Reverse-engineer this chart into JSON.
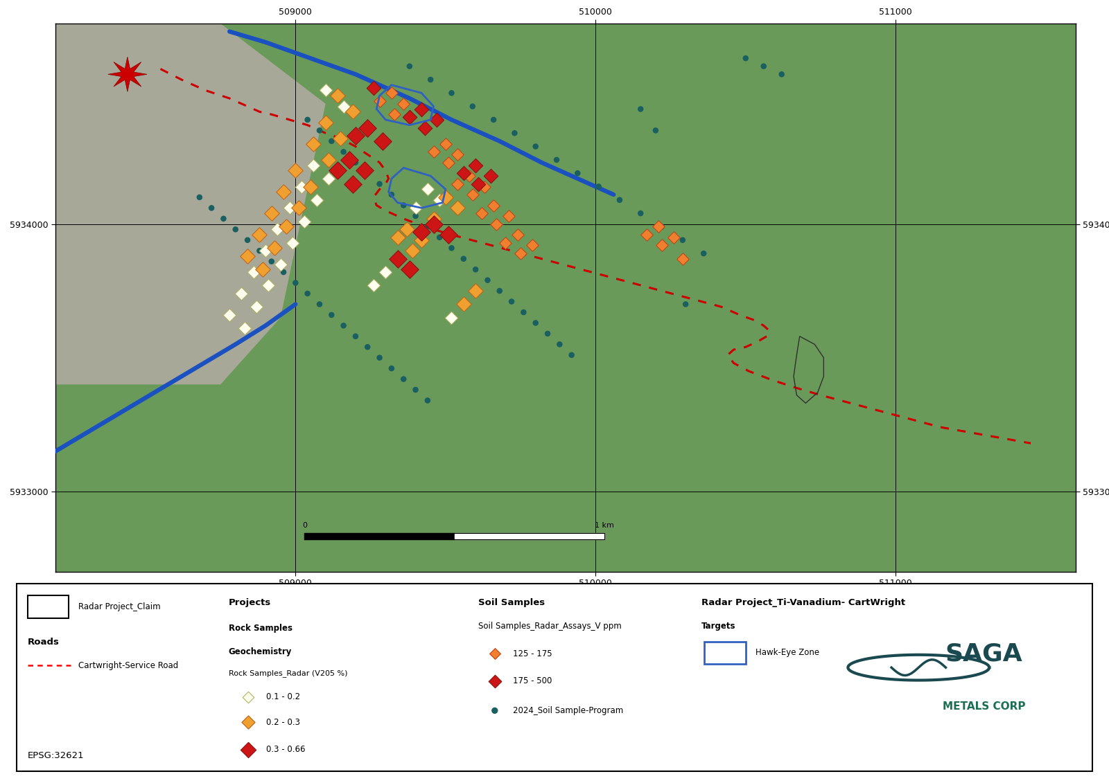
{
  "xlim": [
    508200,
    511600
  ],
  "ylim": [
    5932700,
    5934750
  ],
  "xticks": [
    509000,
    510000,
    511000
  ],
  "yticks": [
    5933000,
    5934000
  ],
  "soil_dots": [
    [
      508680,
      5934100
    ],
    [
      508720,
      5934060
    ],
    [
      508760,
      5934020
    ],
    [
      508800,
      5933980
    ],
    [
      508840,
      5933940
    ],
    [
      508880,
      5933900
    ],
    [
      508920,
      5933860
    ],
    [
      508960,
      5933820
    ],
    [
      509000,
      5933780
    ],
    [
      509040,
      5933740
    ],
    [
      509080,
      5933700
    ],
    [
      509120,
      5933660
    ],
    [
      509160,
      5933620
    ],
    [
      509200,
      5933580
    ],
    [
      509240,
      5933540
    ],
    [
      509280,
      5933500
    ],
    [
      509320,
      5933460
    ],
    [
      509360,
      5933420
    ],
    [
      509400,
      5933380
    ],
    [
      509440,
      5933340
    ],
    [
      509040,
      5934390
    ],
    [
      509080,
      5934350
    ],
    [
      509120,
      5934310
    ],
    [
      509160,
      5934270
    ],
    [
      509200,
      5934230
    ],
    [
      509240,
      5934190
    ],
    [
      509280,
      5934150
    ],
    [
      509320,
      5934110
    ],
    [
      509360,
      5934070
    ],
    [
      509400,
      5934030
    ],
    [
      509440,
      5933990
    ],
    [
      509480,
      5933950
    ],
    [
      509520,
      5933910
    ],
    [
      509560,
      5933870
    ],
    [
      509600,
      5933830
    ],
    [
      509640,
      5933790
    ],
    [
      509680,
      5933750
    ],
    [
      509720,
      5933710
    ],
    [
      509760,
      5933670
    ],
    [
      509800,
      5933630
    ],
    [
      509840,
      5933590
    ],
    [
      509880,
      5933550
    ],
    [
      509920,
      5933510
    ],
    [
      509380,
      5934590
    ],
    [
      509450,
      5934540
    ],
    [
      509520,
      5934490
    ],
    [
      509590,
      5934440
    ],
    [
      509660,
      5934390
    ],
    [
      509730,
      5934340
    ],
    [
      509800,
      5934290
    ],
    [
      509870,
      5934240
    ],
    [
      509940,
      5934190
    ],
    [
      510010,
      5934140
    ],
    [
      510080,
      5934090
    ],
    [
      510150,
      5934040
    ],
    [
      510220,
      5933990
    ],
    [
      510290,
      5933940
    ],
    [
      510360,
      5933890
    ],
    [
      510500,
      5934620
    ],
    [
      510560,
      5934590
    ],
    [
      510620,
      5934560
    ],
    [
      510150,
      5934430
    ],
    [
      510200,
      5934350
    ],
    [
      510300,
      5933700
    ]
  ],
  "rock_01_02": [
    [
      509100,
      5934500
    ],
    [
      509160,
      5934440
    ],
    [
      509060,
      5934220
    ],
    [
      509110,
      5934170
    ],
    [
      509020,
      5934140
    ],
    [
      509070,
      5934090
    ],
    [
      508980,
      5934060
    ],
    [
      509030,
      5934010
    ],
    [
      508940,
      5933980
    ],
    [
      508990,
      5933930
    ],
    [
      508900,
      5933900
    ],
    [
      508950,
      5933850
    ],
    [
      508860,
      5933820
    ],
    [
      508910,
      5933770
    ],
    [
      508820,
      5933740
    ],
    [
      508870,
      5933690
    ],
    [
      508780,
      5933660
    ],
    [
      508830,
      5933610
    ],
    [
      509300,
      5933820
    ],
    [
      509260,
      5933770
    ],
    [
      509440,
      5934130
    ],
    [
      509480,
      5934090
    ],
    [
      509400,
      5934060
    ],
    [
      509560,
      5933700
    ],
    [
      509520,
      5933650
    ]
  ],
  "rock_02_03": [
    [
      509140,
      5934480
    ],
    [
      509190,
      5934420
    ],
    [
      509100,
      5934380
    ],
    [
      509150,
      5934320
    ],
    [
      509060,
      5934300
    ],
    [
      509110,
      5934240
    ],
    [
      509000,
      5934200
    ],
    [
      509050,
      5934140
    ],
    [
      508960,
      5934120
    ],
    [
      509010,
      5934060
    ],
    [
      508920,
      5934040
    ],
    [
      508970,
      5933990
    ],
    [
      508880,
      5933960
    ],
    [
      508930,
      5933910
    ],
    [
      508840,
      5933880
    ],
    [
      508890,
      5933830
    ],
    [
      509370,
      5933980
    ],
    [
      509420,
      5933940
    ],
    [
      509340,
      5933950
    ],
    [
      509390,
      5933900
    ],
    [
      509500,
      5934100
    ],
    [
      509540,
      5934060
    ],
    [
      509460,
      5934020
    ],
    [
      509600,
      5933750
    ],
    [
      509560,
      5933700
    ]
  ],
  "rock_03_066": [
    [
      509240,
      5934360
    ],
    [
      509290,
      5934310
    ],
    [
      509200,
      5934330
    ],
    [
      509180,
      5934240
    ],
    [
      509230,
      5934200
    ],
    [
      509140,
      5934200
    ],
    [
      509190,
      5934150
    ],
    [
      509340,
      5933870
    ],
    [
      509380,
      5933830
    ],
    [
      509460,
      5934000
    ],
    [
      509510,
      5933960
    ],
    [
      509420,
      5933970
    ]
  ],
  "soil_125_175": [
    [
      509320,
      5934490
    ],
    [
      509360,
      5934450
    ],
    [
      509280,
      5934460
    ],
    [
      509330,
      5934410
    ],
    [
      509500,
      5934300
    ],
    [
      509540,
      5934260
    ],
    [
      509460,
      5934270
    ],
    [
      509510,
      5934230
    ],
    [
      509580,
      5934180
    ],
    [
      509630,
      5934140
    ],
    [
      509540,
      5934150
    ],
    [
      509590,
      5934110
    ],
    [
      509660,
      5934070
    ],
    [
      509710,
      5934030
    ],
    [
      509620,
      5934040
    ],
    [
      509670,
      5934000
    ],
    [
      509740,
      5933960
    ],
    [
      509790,
      5933920
    ],
    [
      509700,
      5933930
    ],
    [
      509750,
      5933890
    ],
    [
      510210,
      5933990
    ],
    [
      510260,
      5933950
    ],
    [
      510170,
      5933960
    ],
    [
      510220,
      5933920
    ],
    [
      510290,
      5933870
    ]
  ],
  "soil_175_500": [
    [
      509420,
      5934430
    ],
    [
      509470,
      5934390
    ],
    [
      509380,
      5934400
    ],
    [
      509430,
      5934360
    ],
    [
      509260,
      5934510
    ],
    [
      509600,
      5934220
    ],
    [
      509650,
      5934180
    ],
    [
      509560,
      5934190
    ],
    [
      509610,
      5934150
    ]
  ],
  "road_dashed_x": [
    508550,
    508620,
    508700,
    508780,
    508840,
    508880,
    508920,
    508980,
    509040,
    509100,
    509150,
    509200,
    509240,
    509280,
    509300,
    509310,
    509300,
    509280,
    509260,
    509270,
    509300,
    509360,
    509430,
    509520,
    509620,
    509720,
    509820,
    509920,
    510020,
    510120,
    510220,
    510320,
    510420,
    510480,
    510530,
    510560,
    510580,
    510570,
    510540,
    510500,
    510460,
    510440,
    510460,
    510510,
    510580,
    510660,
    510750,
    510850,
    510950,
    511050,
    511150,
    511300,
    511450
  ],
  "road_dashed_y": [
    5934580,
    5934540,
    5934500,
    5934470,
    5934440,
    5934420,
    5934410,
    5934390,
    5934370,
    5934340,
    5934320,
    5934290,
    5934260,
    5934230,
    5934200,
    5934170,
    5934150,
    5934130,
    5934100,
    5934070,
    5934050,
    5934020,
    5933990,
    5933960,
    5933930,
    5933900,
    5933870,
    5933840,
    5933810,
    5933780,
    5933750,
    5933720,
    5933690,
    5933660,
    5933640,
    5933620,
    5933600,
    5933580,
    5933560,
    5933540,
    5933530,
    5933510,
    5933480,
    5933450,
    5933420,
    5933390,
    5933360,
    5933330,
    5933300,
    5933270,
    5933240,
    5933210,
    5933180
  ],
  "blue_road_x": [
    508780,
    508900,
    509000,
    509100,
    509200,
    509300,
    509380,
    509450,
    509520,
    509600,
    509680,
    509750,
    509820,
    509900,
    509980,
    510060
  ],
  "blue_road_y": [
    5934720,
    5934680,
    5934640,
    5934600,
    5934560,
    5934510,
    5934470,
    5934430,
    5934390,
    5934350,
    5934310,
    5934270,
    5934230,
    5934190,
    5934150,
    5934110
  ],
  "blue_road2_x": [
    508200,
    508350,
    508500,
    508650,
    508800,
    508900,
    508950,
    509000
  ],
  "blue_road2_y": [
    5933150,
    5933250,
    5933350,
    5933450,
    5933550,
    5933620,
    5933660,
    5933700
  ],
  "gray_area": [
    [
      508200,
      5934750
    ],
    [
      508750,
      5934750
    ],
    [
      509100,
      5934450
    ],
    [
      508950,
      5933650
    ],
    [
      508750,
      5933400
    ],
    [
      508200,
      5933400
    ]
  ],
  "hawk_eye_zone_x": [
    509320,
    509420,
    509460,
    509450,
    509380,
    509300,
    509270,
    509280,
    509320
  ],
  "hawk_eye_zone_y": [
    5934520,
    5934490,
    5934440,
    5934390,
    5934370,
    5934390,
    5934430,
    5934480,
    5934520
  ],
  "hawk_eye_zone2_x": [
    509360,
    509450,
    509500,
    509490,
    509420,
    509340,
    509310,
    509320,
    509360
  ],
  "hawk_eye_zone2_y": [
    5934210,
    5934180,
    5934130,
    5934080,
    5934060,
    5934080,
    5934120,
    5934170,
    5934210
  ],
  "oval_x": [
    510680,
    510730,
    510760,
    510760,
    510740,
    510700,
    510670,
    510660,
    510670,
    510680
  ],
  "oval_y": [
    5933580,
    5933550,
    5933500,
    5933430,
    5933370,
    5933330,
    5933360,
    5933430,
    5933510,
    5933580
  ],
  "scalebar_start_x": 509030,
  "scalebar_end_x": 510030,
  "scalebar_y_map": 5932820,
  "colors": {
    "green_bg": "#6a9a5a",
    "gray_bg": "#a8a898",
    "rock_01_02_fill": "#fffff0",
    "rock_01_02_edge": "#b0b060",
    "rock_02_03_fill": "#f0a030",
    "rock_02_03_edge": "#c06010",
    "rock_03_066_fill": "#cc1515",
    "rock_03_066_edge": "#881010",
    "soil_125_175_fill": "#f08030",
    "soil_125_175_edge": "#c04010",
    "soil_175_500_fill": "#cc1515",
    "soil_175_500_edge": "#881010",
    "soil_dot": "#1a6060",
    "road_dashed": "#cc0000",
    "blue_road": "#1a50c0",
    "hawk_eye_edge": "#3060c0",
    "oval_edge": "#303030"
  },
  "legend": {
    "claim_label": "Radar Project_Claim",
    "roads_label": "Roads",
    "service_road_label": "Cartwright-Service Road",
    "projects_label": "Projects",
    "rock_samples_label": "Rock Samples",
    "geochemistry_label": "Geochemistry",
    "rock_header": "Rock Samples_Radar (V205 %)",
    "rock_range1": "0.1 - 0.2",
    "rock_range2": "0.2 - 0.3",
    "rock_range3": "0.3 - 0.66",
    "soil_header": "Soil Samples",
    "soil_sub_header": "Soil Samples_Radar_Assays_V ppm",
    "soil_range1": "125 - 175",
    "soil_range2": "175 - 500",
    "soil_dot_label": "2024_Soil Sample-Program",
    "targets_label": "Radar Project_Ti-Vanadium- CartWright",
    "targets_sub": "Targets",
    "hawk_eye_label": "Hawk-Eye Zone",
    "epsg_label": "EPSG:32621"
  }
}
